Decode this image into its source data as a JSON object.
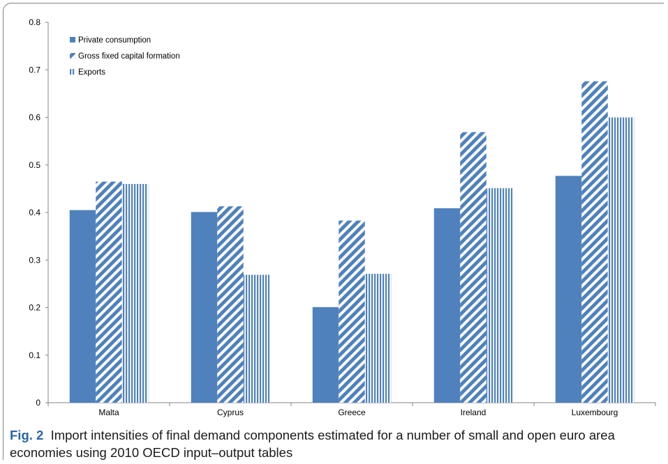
{
  "chart_data": {
    "type": "bar",
    "categories": [
      "Malta",
      "Cyprus",
      "Greece",
      "Ireland",
      "Luxembourg"
    ],
    "series": [
      {
        "name": "Private consumption",
        "values": [
          0.405,
          0.401,
          0.201,
          0.409,
          0.477
        ]
      },
      {
        "name": "Gross fixed capital formation",
        "values": [
          0.465,
          0.413,
          0.383,
          0.569,
          0.676
        ]
      },
      {
        "name": "Exports",
        "values": [
          0.46,
          0.269,
          0.271,
          0.451,
          0.6
        ]
      }
    ],
    "ylim": [
      0,
      0.8
    ],
    "yticks": [
      "0",
      "0.1",
      "0.2",
      "0.3",
      "0.4",
      "0.5",
      "0.6",
      "0.7",
      "0.8"
    ],
    "legend": "top-left",
    "grid": false,
    "colors": {
      "bar": "#4f81bd"
    }
  },
  "caption": {
    "label": "Fig. 2",
    "text": "Import intensities of final demand components estimated for a number of small and open euro area economies using 2010 OECD input–output tables"
  }
}
